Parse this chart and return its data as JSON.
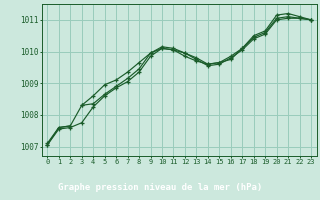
{
  "title": "Graphe pression niveau de la mer (hPa)",
  "bg_plot": "#cce8dd",
  "bg_label": "#2d6e3e",
  "grid_color": "#99ccbb",
  "line_color": "#1a5c2a",
  "text_color_axis": "#1a5c2a",
  "text_color_label": "#ffffff",
  "x_ticks": [
    0,
    1,
    2,
    3,
    4,
    5,
    6,
    7,
    8,
    9,
    10,
    11,
    12,
    13,
    14,
    15,
    16,
    17,
    18,
    19,
    20,
    21,
    22,
    23
  ],
  "ylim": [
    1006.7,
    1011.5
  ],
  "yticks": [
    1007,
    1008,
    1009,
    1010,
    1011
  ],
  "line1": [
    1007.05,
    1007.55,
    1007.6,
    1007.75,
    1008.25,
    1008.6,
    1008.85,
    1009.05,
    1009.35,
    1009.85,
    1010.1,
    1010.05,
    1009.95,
    1009.75,
    1009.55,
    1009.6,
    1009.8,
    1010.05,
    1010.4,
    1010.55,
    1011.0,
    1011.05,
    1011.05,
    1011.0
  ],
  "line2": [
    1007.1,
    1007.6,
    1007.65,
    1008.3,
    1008.35,
    1008.65,
    1008.9,
    1009.15,
    1009.45,
    1009.95,
    1010.1,
    1010.05,
    1009.85,
    1009.7,
    1009.6,
    1009.65,
    1009.75,
    1010.1,
    1010.45,
    1010.6,
    1011.05,
    1011.1,
    1011.05,
    1011.0
  ],
  "line3_outlier": [
    1007.05,
    null,
    null,
    1008.3,
    1008.6,
    1008.95,
    1009.1,
    1009.35,
    1009.65,
    1009.95,
    1010.15,
    1010.1,
    1009.95,
    1009.8,
    1009.6,
    1009.65,
    1009.85,
    1010.1,
    1010.5,
    1010.65,
    1011.15,
    1011.2,
    1011.1,
    1011.0
  ],
  "line_outlier_extra": [
    1007.05,
    1007.6,
    1007.65,
    1008.3,
    null,
    null,
    null,
    null,
    null,
    null,
    1010.15,
    null,
    null,
    null,
    null,
    null,
    null,
    null,
    null,
    null,
    null,
    null,
    null,
    null
  ]
}
